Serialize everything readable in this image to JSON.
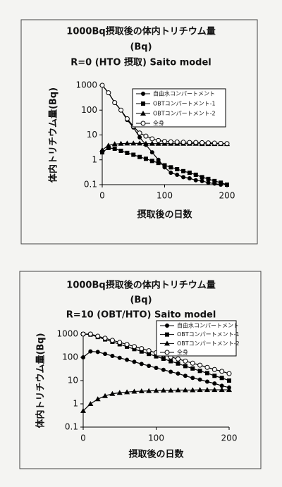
{
  "chart_data": [
    {
      "type": "line",
      "title": [
        "1000Bq摂取後の体内トリチウム量",
        "(Bq)",
        "R=0 (HTO 摂取) Saito model"
      ],
      "xlabel": "摂取後の日数",
      "ylabel": "体内トリチウム量(Bq)",
      "yscale": "log",
      "xlim": [
        0,
        200
      ],
      "xticks": [
        0,
        100,
        200
      ],
      "ylim": [
        0.1,
        1000
      ],
      "yticks": [
        0.1,
        1,
        10,
        100,
        1000
      ],
      "x": [
        0,
        10,
        20,
        30,
        40,
        50,
        60,
        70,
        80,
        90,
        100,
        110,
        120,
        130,
        140,
        150,
        160,
        170,
        180,
        190,
        200
      ],
      "series": [
        {
          "name": "自由水コンパートメント",
          "color": "#000000",
          "marker": "circle",
          "values": [
            1000,
            500,
            200,
            100,
            40,
            20,
            8,
            4,
            2,
            1,
            0.5,
            0.3,
            0.25,
            0.2,
            0.18,
            0.15,
            0.14,
            0.12,
            0.11,
            0.1,
            0.1
          ]
        },
        {
          "name": "OBTコンパートメント-1",
          "color": "#000000",
          "marker": "square",
          "values": [
            2,
            3,
            2.8,
            2.3,
            1.9,
            1.6,
            1.3,
            1.1,
            0.9,
            0.75,
            0.6,
            0.5,
            0.42,
            0.35,
            0.3,
            0.25,
            0.2,
            0.17,
            0.14,
            0.12,
            0.1
          ]
        },
        {
          "name": "OBTコンパートメント-2",
          "color": "#000000",
          "marker": "triangle",
          "values": [
            2.5,
            3.8,
            4.3,
            4.5,
            4.6,
            4.6,
            4.6,
            4.5,
            4.5,
            4.5,
            4.5,
            4.5,
            4.5,
            4.5,
            4.5,
            4.5,
            4.4,
            4.4,
            4.4,
            4.4,
            4.4
          ]
        },
        {
          "name": "全身",
          "color": "#000000",
          "marker": "open-circle",
          "values": [
            1000,
            500,
            200,
            100,
            45,
            22,
            12,
            9,
            7,
            6,
            5.5,
            5.3,
            5.2,
            5.1,
            5,
            5,
            4.9,
            4.8,
            4.7,
            4.6,
            4.5
          ]
        }
      ]
    },
    {
      "type": "line",
      "title": [
        "1000Bq摂取後の体内トリチウム量",
        "(Bq)",
        "R=10 (OBT/HTO) Saito model"
      ],
      "xlabel": "摂取後の日数",
      "ylabel": "体内トリチウム量(Bq)",
      "yscale": "log",
      "xlim": [
        0,
        200
      ],
      "xticks": [
        0,
        100,
        200
      ],
      "ylim": [
        0.1,
        1000
      ],
      "yticks": [
        0.1,
        1,
        10,
        100,
        1000
      ],
      "x": [
        0,
        10,
        20,
        30,
        40,
        50,
        60,
        70,
        80,
        90,
        100,
        110,
        120,
        130,
        140,
        150,
        160,
        170,
        180,
        190,
        200
      ],
      "series": [
        {
          "name": "自由水コンパートメント",
          "color": "#000000",
          "marker": "circle",
          "values": [
            100,
            180,
            170,
            140,
            115,
            95,
            78,
            64,
            52,
            43,
            35,
            29,
            24,
            20,
            16,
            13,
            11,
            9,
            7.5,
            6,
            5
          ]
        },
        {
          "name": "OBTコンパートメント-1",
          "color": "#000000",
          "marker": "square",
          "values": [
            1000,
            950,
            748,
            588,
            463,
            364,
            287,
            226,
            178,
            140,
            110,
            87,
            68,
            54,
            42,
            33,
            26,
            21,
            16,
            13,
            10
          ]
        },
        {
          "name": "OBTコンパートメント-2",
          "color": "#000000",
          "marker": "triangle",
          "values": [
            0.5,
            1,
            1.6,
            2.2,
            2.7,
            3,
            3.2,
            3.4,
            3.5,
            3.6,
            3.7,
            3.8,
            3.8,
            3.9,
            3.9,
            3.9,
            4,
            4,
            4,
            4,
            4
          ]
        },
        {
          "name": "全身",
          "color": "#000000",
          "marker": "open-circle",
          "values": [
            1000,
            1000,
            814,
            663,
            540,
            439,
            358,
            291,
            237,
            193,
            157,
            128,
            104,
            85,
            69,
            56,
            46,
            37,
            30,
            25,
            20
          ]
        }
      ]
    }
  ]
}
